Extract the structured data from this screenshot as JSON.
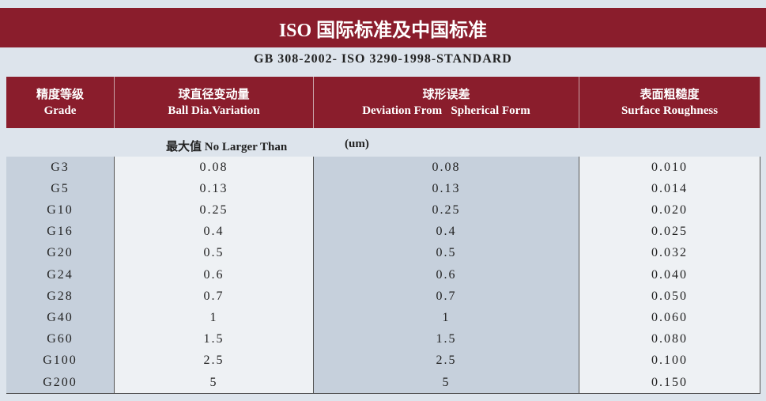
{
  "header": {
    "title": "ISO 国际标准及中国标准",
    "subtitle": "GB 308-2002- ISO 3290-1998-STANDARD"
  },
  "table": {
    "columns": [
      {
        "zh": "精度等级",
        "en": "Grade"
      },
      {
        "zh": "球直径变动量",
        "en": "Ball Dia.Variation"
      },
      {
        "zh": "球形误差",
        "en": "Deviation From   Spherical Form"
      },
      {
        "zh": "表面粗糙度",
        "en": "Surface Roughness"
      }
    ],
    "note": {
      "label": "最大值 No Larger Than",
      "unit": "(um)"
    },
    "rows": [
      [
        "G3",
        "0.08",
        "0.08",
        "0.010"
      ],
      [
        "G5",
        "0.13",
        "0.13",
        "0.014"
      ],
      [
        "G10",
        "0.25",
        "0.25",
        "0.020"
      ],
      [
        "G16",
        "0.4",
        "0.4",
        "0.025"
      ],
      [
        "G20",
        "0.5",
        "0.5",
        "0.032"
      ],
      [
        "G24",
        "0.6",
        "0.6",
        "0.040"
      ],
      [
        "G28",
        "0.7",
        "0.7",
        "0.050"
      ],
      [
        "G40",
        "1",
        "1",
        "0.060"
      ],
      [
        "G60",
        "1.5",
        "1.5",
        "0.080"
      ],
      [
        "G100",
        "2.5",
        "2.5",
        "0.100"
      ],
      [
        "G200",
        "5",
        "5",
        "0.150"
      ]
    ]
  }
}
